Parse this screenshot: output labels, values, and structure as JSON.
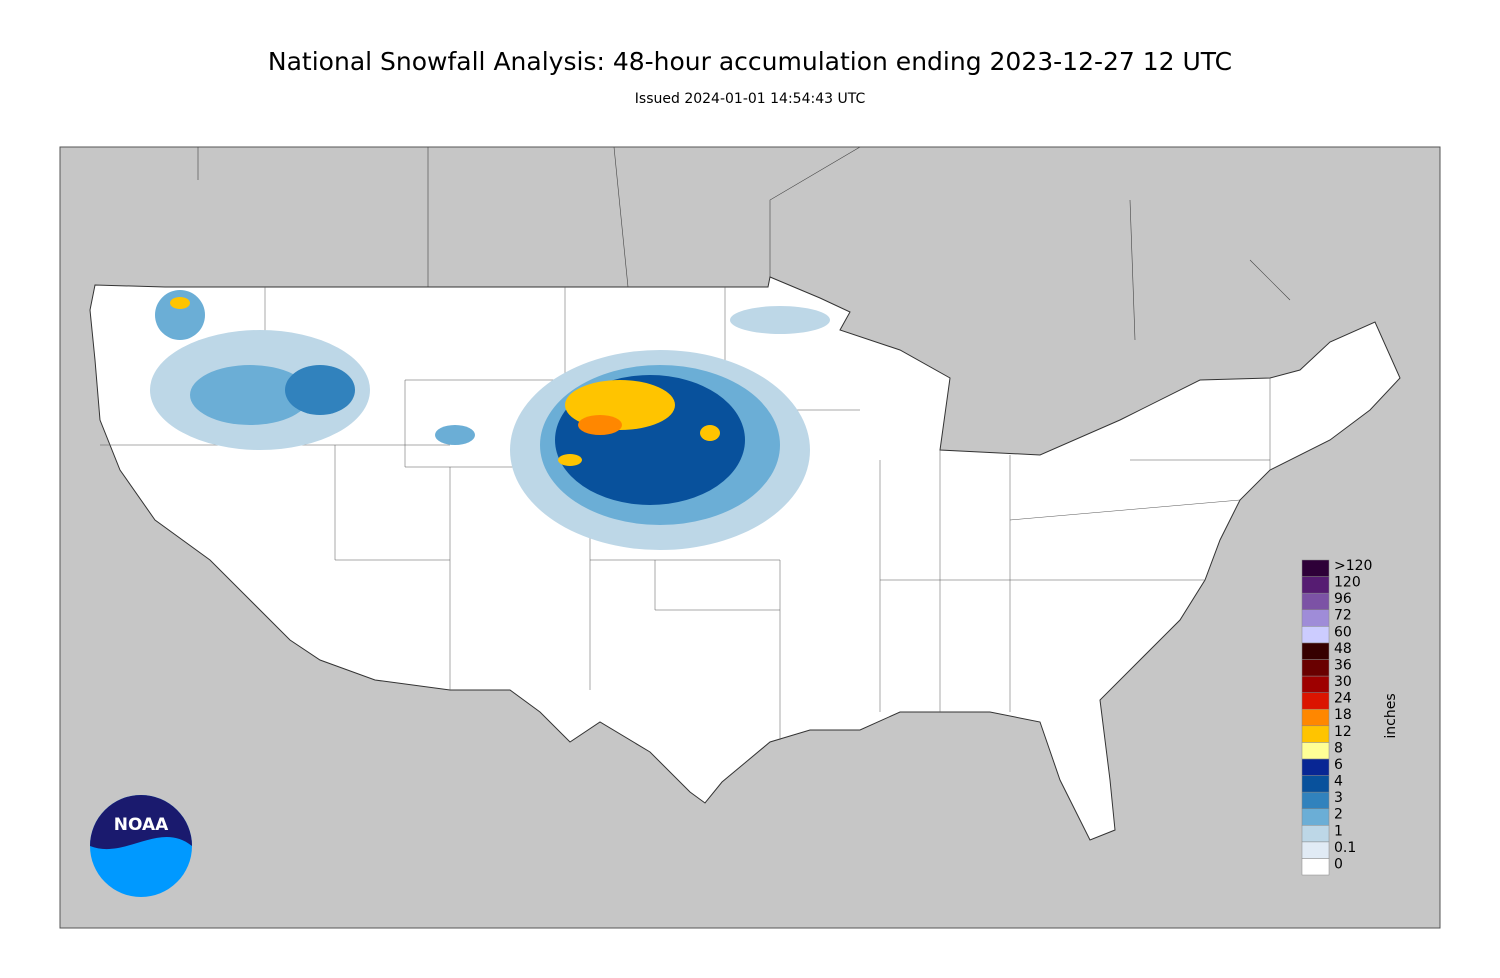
{
  "header": {
    "title": "National Snowfall Analysis: 48-hour accumulation ending 2023-12-27 12 UTC",
    "subtitle": "Issued 2024-01-01 14:54:43 UTC"
  },
  "legend": {
    "unit": "inches",
    "items": [
      {
        "label": "0",
        "color": "#ffffff"
      },
      {
        "label": "0.1",
        "color": "#e1ebf5"
      },
      {
        "label": "1",
        "color": "#bdd7e7"
      },
      {
        "label": "2",
        "color": "#6baed6"
      },
      {
        "label": "3",
        "color": "#3182bd"
      },
      {
        "label": "4",
        "color": "#08519c"
      },
      {
        "label": "6",
        "color": "#082694"
      },
      {
        "label": "8",
        "color": "#ffff96"
      },
      {
        "label": "12",
        "color": "#ffc400"
      },
      {
        "label": "18",
        "color": "#ff8700"
      },
      {
        "label": "24",
        "color": "#db1400"
      },
      {
        "label": "30",
        "color": "#9e0000"
      },
      {
        "label": "36",
        "color": "#690000"
      },
      {
        "label": "48",
        "color": "#360000"
      },
      {
        "label": "60",
        "color": "#ccccff"
      },
      {
        "label": "72",
        "color": "#9f8cd8"
      },
      {
        "label": "96",
        "color": "#7c52a5"
      },
      {
        "label": "120",
        "color": "#561c72"
      },
      {
        "label": ">120",
        "color": "#2e0038"
      }
    ]
  },
  "logo": {
    "text": "NOAA"
  }
}
